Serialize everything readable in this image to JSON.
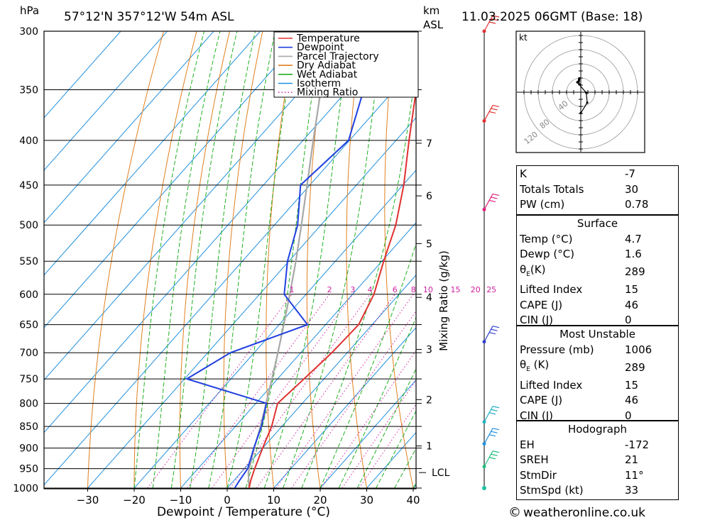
{
  "header": {
    "hpa_label": "hPa",
    "location": "57°12'N  357°12'W  54m  ASL",
    "km_label": "km",
    "asl_label": "ASL",
    "datetime": "11.03.2025  06GMT  (Base: 18)"
  },
  "footer": {
    "copyright_symbol": "©",
    "site": "weatheronline.co.uk"
  },
  "chart_data": {
    "type": "skew-t log-p",
    "xlabel": "Dewpoint / Temperature (°C)",
    "ylabel": "hPa",
    "mixing_ratio_axis_label": "Mixing Ratio (g/kg)",
    "x_ticks": [
      -30,
      -20,
      -10,
      0,
      10,
      20,
      30,
      40
    ],
    "pressure_levels": [
      300,
      350,
      400,
      450,
      500,
      550,
      600,
      650,
      700,
      750,
      800,
      850,
      900,
      950,
      1000
    ],
    "km_ticks": [
      {
        "km": "7",
        "pressure": 403
      },
      {
        "km": "6",
        "pressure": 463
      },
      {
        "km": "5",
        "pressure": 525
      },
      {
        "km": "4",
        "pressure": 605
      },
      {
        "km": "3",
        "pressure": 694
      },
      {
        "km": "2",
        "pressure": 792
      },
      {
        "km": "1",
        "pressure": 895
      }
    ],
    "lcl": {
      "label": "LCL",
      "pressure": 960
    },
    "mixing_ratio_labels": [
      "1",
      "2",
      "3",
      "4",
      "6",
      "8",
      "10",
      "15",
      "20",
      "25"
    ],
    "mixing_ratio_values": [
      1,
      2,
      3,
      4,
      6,
      8,
      10,
      15,
      20,
      25
    ],
    "legend": {
      "position": "top-center",
      "entries": [
        {
          "name": "Temperature",
          "color": "#e03030",
          "style": "solid"
        },
        {
          "name": "Dewpoint",
          "color": "#2040e0",
          "style": "solid"
        },
        {
          "name": "Parcel Trajectory",
          "color": "#a8a8a8",
          "style": "solid"
        },
        {
          "name": "Dry Adiabat",
          "color": "#e08020",
          "style": "solid"
        },
        {
          "name": "Wet Adiabat",
          "color": "#20b020",
          "style": "solid"
        },
        {
          "name": "Isotherm",
          "color": "#2090e0",
          "style": "solid"
        },
        {
          "name": "Mixing Ratio",
          "color": "#d020a0",
          "style": "dotted"
        }
      ]
    },
    "temperature_profile": [
      [
        1000,
        4.7
      ],
      [
        980,
        3.6
      ],
      [
        950,
        2.2
      ],
      [
        900,
        0.0
      ],
      [
        850,
        -2.2
      ],
      [
        800,
        -5.3
      ],
      [
        760,
        -4.5
      ],
      [
        700,
        -3.3
      ],
      [
        650,
        -2.9
      ],
      [
        600,
        -5.4
      ],
      [
        550,
        -9.6
      ],
      [
        500,
        -13.9
      ],
      [
        450,
        -19.8
      ],
      [
        400,
        -27.2
      ],
      [
        350,
        -35.3
      ],
      [
        300,
        -44.0
      ]
    ],
    "dewpoint_profile": [
      [
        1000,
        1.6
      ],
      [
        980,
        1.2
      ],
      [
        950,
        0.7
      ],
      [
        900,
        -1.9
      ],
      [
        850,
        -4.4
      ],
      [
        800,
        -7.7
      ],
      [
        750,
        -29.5
      ],
      [
        700,
        -25.1
      ],
      [
        650,
        -13.9
      ],
      [
        600,
        -24.7
      ],
      [
        550,
        -30.3
      ],
      [
        500,
        -35.0
      ],
      [
        450,
        -42.0
      ],
      [
        400,
        -40.2
      ],
      [
        350,
        -46.6
      ],
      [
        300,
        -54.0
      ]
    ],
    "parcel_profile": [
      [
        1000,
        4.7
      ],
      [
        960,
        1.6
      ],
      [
        900,
        -1.8
      ],
      [
        850,
        -4.6
      ],
      [
        800,
        -7.8
      ],
      [
        750,
        -11.2
      ],
      [
        700,
        -14.9
      ],
      [
        650,
        -19.0
      ],
      [
        600,
        -23.5
      ],
      [
        550,
        -28.5
      ],
      [
        500,
        -34.2
      ],
      [
        450,
        -40.6
      ],
      [
        400,
        -47.8
      ],
      [
        350,
        -55.8
      ],
      [
        310,
        -62.8
      ]
    ],
    "hodograph": {
      "units_label": "kt",
      "ring_labels": [
        "40",
        "80",
        "120"
      ],
      "points": [
        [
          -1.5,
          8
        ],
        [
          -2,
          11
        ],
        [
          -1.8,
          12.5
        ],
        [
          -1.5,
          14
        ],
        [
          -3.5,
          10
        ],
        [
          5.5,
          -0.5
        ],
        [
          6.5,
          -10.5
        ],
        [
          0,
          -21
        ]
      ]
    },
    "wind_barbs": [
      {
        "pressure": 300,
        "color": "#e03030"
      },
      {
        "pressure": 380,
        "color": "#e03030"
      },
      {
        "pressure": 480,
        "color": "#e0207a"
      },
      {
        "pressure": 680,
        "color": "#3040d0"
      },
      {
        "pressure": 840,
        "color": "#20b0c0"
      },
      {
        "pressure": 890,
        "color": "#2090e0"
      },
      {
        "pressure": 945,
        "color": "#20c080"
      }
    ]
  },
  "indices": {
    "top": [
      {
        "label": "K",
        "value": "-7"
      },
      {
        "label": "Totals Totals",
        "value": "30"
      },
      {
        "label": "PW (cm)",
        "value": "0.78"
      }
    ],
    "surface": {
      "title": "Surface",
      "rows": [
        {
          "label": "Temp (°C)",
          "value": "4.7"
        },
        {
          "label": "Dewp (°C)",
          "value": "1.6"
        },
        {
          "label_main": "θ",
          "label_sub": "E",
          "label_rest": "(K)",
          "value": "289"
        },
        {
          "label": "Lifted Index",
          "value": "15"
        },
        {
          "label": "CAPE (J)",
          "value": "46"
        },
        {
          "label": "CIN (J)",
          "value": "0"
        }
      ]
    },
    "most_unstable": {
      "title": "Most Unstable",
      "rows": [
        {
          "label": "Pressure (mb)",
          "value": "1006"
        },
        {
          "label_main": "θ",
          "label_sub": "E",
          "label_rest": " (K)",
          "value": "289"
        },
        {
          "label": "Lifted Index",
          "value": "15"
        },
        {
          "label": "CAPE (J)",
          "value": "46"
        },
        {
          "label": "CIN (J)",
          "value": "0"
        }
      ]
    },
    "hodograph_box": {
      "title": "Hodograph",
      "rows": [
        {
          "label": "EH",
          "value": "-172"
        },
        {
          "label": "SREH",
          "value": "21"
        },
        {
          "label": "StmDir",
          "value": "11°"
        },
        {
          "label": "StmSpd (kt)",
          "value": "33"
        }
      ]
    }
  }
}
